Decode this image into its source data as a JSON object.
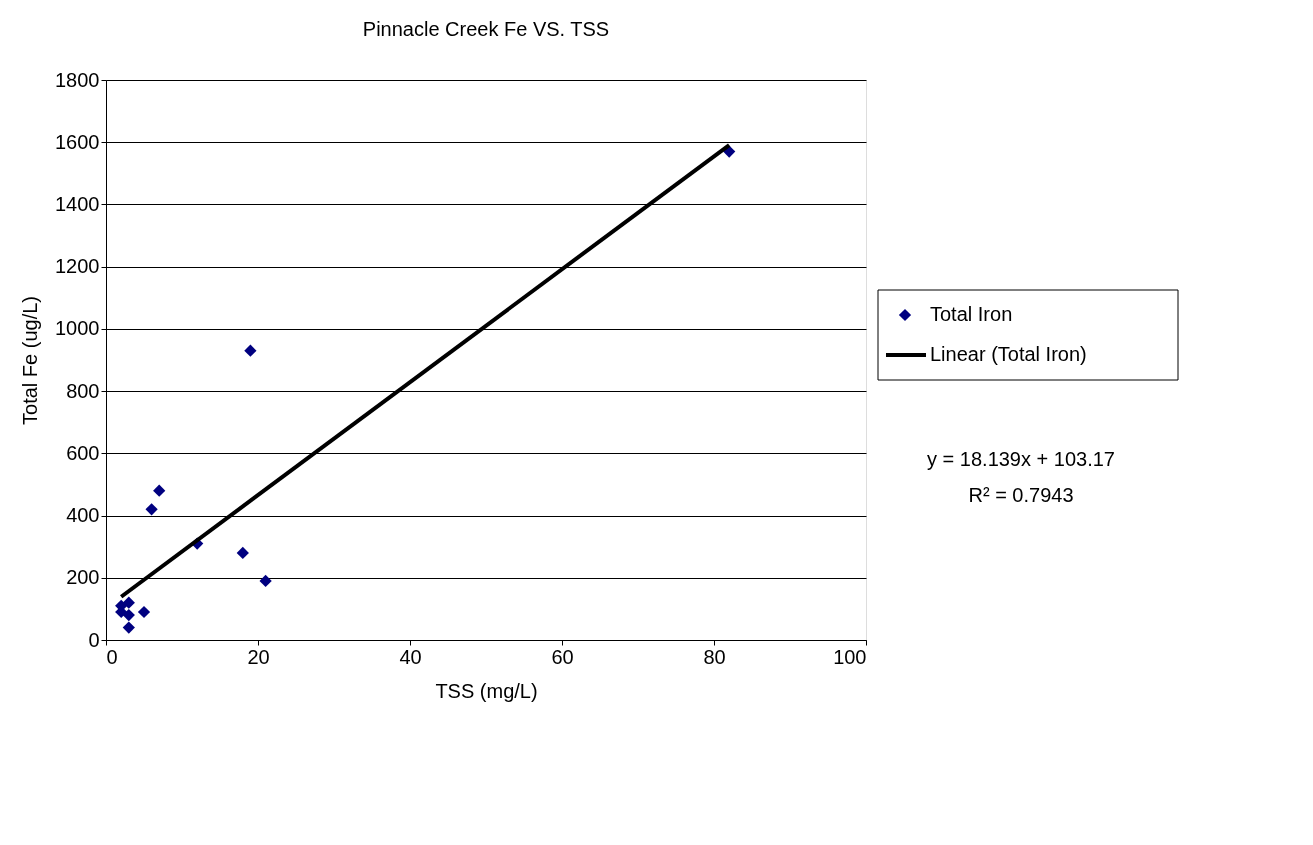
{
  "chart_data": {
    "type": "scatter",
    "title": "Pinnacle Creek Fe VS. TSS",
    "xlabel": "TSS (mg/L)",
    "ylabel": "Total Fe (ug/L)",
    "xlim": [
      0,
      100
    ],
    "xticks": [
      0,
      20,
      40,
      60,
      80,
      100
    ],
    "ylim": [
      0,
      1800
    ],
    "yticks": [
      0,
      200,
      400,
      600,
      800,
      1000,
      1200,
      1400,
      1600,
      1800
    ],
    "grid": "y",
    "legend": "right",
    "series": [
      {
        "name": "Total Iron",
        "type": "scatter",
        "marker": "diamond",
        "color": "#000080",
        "x": [
          2,
          3,
          2,
          3,
          3,
          5,
          6,
          7,
          12,
          18,
          19,
          21,
          82
        ],
        "values": [
          110,
          120,
          90,
          80,
          40,
          90,
          420,
          480,
          310,
          280,
          930,
          190,
          1570
        ]
      },
      {
        "name": "Linear (Total Iron)",
        "type": "line",
        "color": "#000000",
        "line_style": "solid",
        "x": [
          2,
          82
        ],
        "values": [
          139,
          1591
        ]
      }
    ],
    "annotations": [
      "y = 18.139x + 103.17",
      "R² = 0.7943"
    ]
  }
}
